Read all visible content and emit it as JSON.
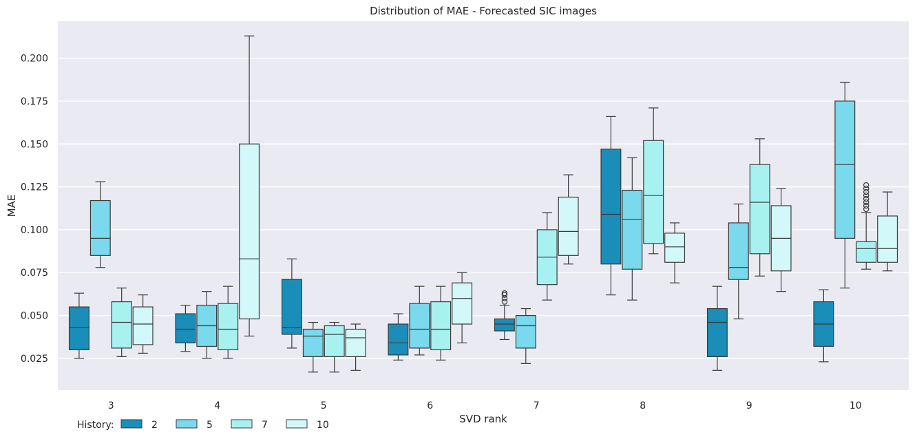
{
  "chart_data": {
    "type": "box",
    "title": "Distribution of MAE - Forecasted SIC images",
    "xlabel": "SVD rank",
    "ylabel": "MAE",
    "ylim": [
      0.0065,
      0.2215
    ],
    "yticks": [
      "0.025",
      "0.050",
      "0.075",
      "0.100",
      "0.125",
      "0.150",
      "0.175",
      "0.200"
    ],
    "grid": true,
    "legend": {
      "title": "History:",
      "placement": "bottom-left"
    },
    "categories": [
      "3",
      "4",
      "5",
      "6",
      "7",
      "8",
      "9",
      "10"
    ],
    "series": [
      {
        "name": "2",
        "color": "#1a8db8",
        "boxes": [
          {
            "whislo": 0.025,
            "q1": 0.03,
            "med": 0.043,
            "q3": 0.055,
            "whishi": 0.063,
            "fliers": []
          },
          {
            "whislo": 0.029,
            "q1": 0.034,
            "med": 0.042,
            "q3": 0.051,
            "whishi": 0.056,
            "fliers": []
          },
          {
            "whislo": 0.031,
            "q1": 0.039,
            "med": 0.043,
            "q3": 0.071,
            "whishi": 0.083,
            "fliers": []
          },
          {
            "whislo": 0.024,
            "q1": 0.027,
            "med": 0.034,
            "q3": 0.045,
            "whishi": 0.051,
            "fliers": []
          },
          {
            "whislo": 0.036,
            "q1": 0.041,
            "med": 0.045,
            "q3": 0.048,
            "whishi": 0.056,
            "fliers": [
              0.058,
              0.06,
              0.062,
              0.063
            ]
          },
          {
            "whislo": 0.062,
            "q1": 0.08,
            "med": 0.109,
            "q3": 0.147,
            "whishi": 0.166,
            "fliers": []
          },
          {
            "whislo": 0.018,
            "q1": 0.026,
            "med": 0.046,
            "q3": 0.054,
            "whishi": 0.067,
            "fliers": []
          },
          {
            "whislo": 0.023,
            "q1": 0.032,
            "med": 0.045,
            "q3": 0.058,
            "whishi": 0.065,
            "fliers": []
          }
        ]
      },
      {
        "name": "5",
        "color": "#7ad9ec",
        "boxes": [
          {
            "whislo": 0.078,
            "q1": 0.085,
            "med": 0.095,
            "q3": 0.117,
            "whishi": 0.128,
            "fliers": []
          },
          {
            "whislo": 0.025,
            "q1": 0.032,
            "med": 0.044,
            "q3": 0.056,
            "whishi": 0.064,
            "fliers": []
          },
          {
            "whislo": 0.017,
            "q1": 0.026,
            "med": 0.038,
            "q3": 0.042,
            "whishi": 0.046,
            "fliers": []
          },
          {
            "whislo": 0.027,
            "q1": 0.031,
            "med": 0.042,
            "q3": 0.057,
            "whishi": 0.067,
            "fliers": []
          },
          {
            "whislo": 0.022,
            "q1": 0.031,
            "med": 0.044,
            "q3": 0.05,
            "whishi": 0.054,
            "fliers": []
          },
          {
            "whislo": 0.059,
            "q1": 0.077,
            "med": 0.106,
            "q3": 0.123,
            "whishi": 0.142,
            "fliers": []
          },
          {
            "whislo": 0.048,
            "q1": 0.071,
            "med": 0.078,
            "q3": 0.104,
            "whishi": 0.115,
            "fliers": []
          },
          {
            "whislo": 0.066,
            "q1": 0.095,
            "med": 0.138,
            "q3": 0.175,
            "whishi": 0.186,
            "fliers": []
          }
        ]
      },
      {
        "name": "7",
        "color": "#a8f1f1",
        "boxes": [
          {
            "whislo": 0.026,
            "q1": 0.031,
            "med": 0.046,
            "q3": 0.058,
            "whishi": 0.066,
            "fliers": []
          },
          {
            "whislo": 0.025,
            "q1": 0.03,
            "med": 0.042,
            "q3": 0.057,
            "whishi": 0.067,
            "fliers": []
          },
          {
            "whislo": 0.017,
            "q1": 0.026,
            "med": 0.039,
            "q3": 0.044,
            "whishi": 0.046,
            "fliers": []
          },
          {
            "whislo": 0.024,
            "q1": 0.03,
            "med": 0.042,
            "q3": 0.058,
            "whishi": 0.067,
            "fliers": []
          },
          {
            "whislo": 0.059,
            "q1": 0.068,
            "med": 0.084,
            "q3": 0.1,
            "whishi": 0.11,
            "fliers": []
          },
          {
            "whislo": 0.086,
            "q1": 0.092,
            "med": 0.12,
            "q3": 0.152,
            "whishi": 0.171,
            "fliers": []
          },
          {
            "whislo": 0.073,
            "q1": 0.086,
            "med": 0.116,
            "q3": 0.138,
            "whishi": 0.153,
            "fliers": []
          },
          {
            "whislo": 0.077,
            "q1": 0.081,
            "med": 0.089,
            "q3": 0.093,
            "whishi": 0.11,
            "fliers": [
              0.112,
              0.114,
              0.116,
              0.118,
              0.12,
              0.122,
              0.124,
              0.126
            ]
          }
        ]
      },
      {
        "name": "10",
        "color": "#d3f8fa",
        "boxes": [
          {
            "whislo": 0.028,
            "q1": 0.033,
            "med": 0.045,
            "q3": 0.055,
            "whishi": 0.062,
            "fliers": []
          },
          {
            "whislo": 0.038,
            "q1": 0.048,
            "med": 0.083,
            "q3": 0.15,
            "whishi": 0.213,
            "fliers": []
          },
          {
            "whislo": 0.018,
            "q1": 0.026,
            "med": 0.037,
            "q3": 0.042,
            "whishi": 0.045,
            "fliers": []
          },
          {
            "whislo": 0.034,
            "q1": 0.045,
            "med": 0.06,
            "q3": 0.069,
            "whishi": 0.075,
            "fliers": []
          },
          {
            "whislo": 0.08,
            "q1": 0.085,
            "med": 0.099,
            "q3": 0.119,
            "whishi": 0.132,
            "fliers": []
          },
          {
            "whislo": 0.069,
            "q1": 0.081,
            "med": 0.09,
            "q3": 0.098,
            "whishi": 0.104,
            "fliers": []
          },
          {
            "whislo": 0.064,
            "q1": 0.076,
            "med": 0.095,
            "q3": 0.114,
            "whishi": 0.124,
            "fliers": []
          },
          {
            "whislo": 0.076,
            "q1": 0.081,
            "med": 0.089,
            "q3": 0.108,
            "whishi": 0.122,
            "fliers": []
          }
        ]
      }
    ]
  }
}
